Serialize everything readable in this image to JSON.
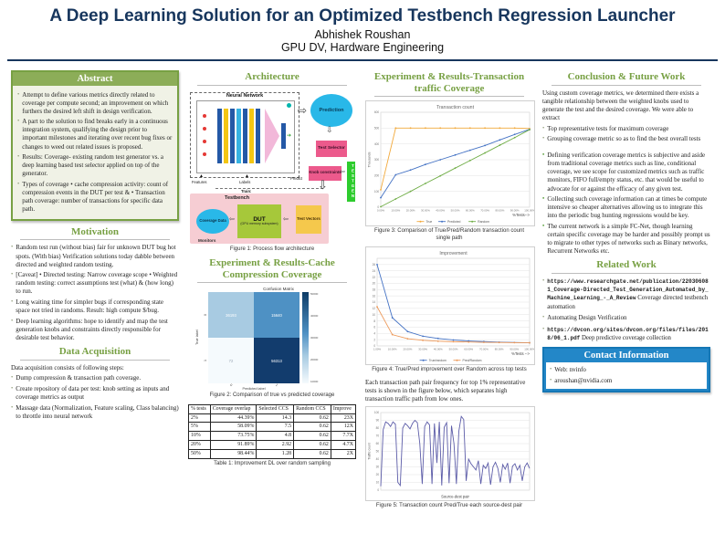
{
  "theme": {
    "navy": "#17365d",
    "accent-green": "#77a043",
    "header-green-bg": "#8cad58",
    "abstract-bg": "#f0f2e6",
    "contact-blue": "#2387c8",
    "contact-border": "#1577b5"
  },
  "header": {
    "title": "A Deep Learning Solution for an Optimized Testbench Regression Launcher",
    "author": "Abhishek Roushan",
    "affiliation": "GPU DV, Hardware Engineering"
  },
  "abstract": {
    "title": "Abstract",
    "items": [
      "Attempt to define various metrics directly related to coverage per compute second; an improvement on which furthers the desired left shift in design verification.",
      "A part to the solution to find breaks early in a continuous integration system, qualifying the design prior to important milestones and iterating over recent bug fixes or changes to weed out related issues is proposed.",
      "Results: Coverage- existing random test generator vs. a deep learning based test selector applied on top of the generator.",
      "Types of coverage • cache compression activity: count of compression events in the DUT per test & • Transaction path coverage: number of transactions for specific data path."
    ]
  },
  "motivation": {
    "title": "Motivation",
    "items": [
      "Random test run (without bias) fair for unknown DUT bug hot spots. (With bias) Verification solutions today dabble between directed and weighted random testing.",
      "[Caveat] • Directed testing: Narrow coverage scope • Weighted random testing: correct assumptions test (what) & (how long) to run.",
      "Long waiting time for simpler bugs if corresponding state space not tried in randoms. Result: high compute $/bug.",
      "Deep learning algorithms: hope to identify and map the test generation knobs and constraints directly responsible for desirable test behavior."
    ]
  },
  "data_acquisition": {
    "title": "Data Acquisition",
    "intro": "Data acquisition consists of following steps:",
    "items": [
      "Dump compression & transaction path coverage.",
      "Create repository of data per test: knob setting as inputs and coverage metrics as output",
      "Massage data (Normalization, Feature scaling, Class balancing) to throttle into neural network"
    ]
  },
  "architecture": {
    "title": "Architecture",
    "caption": "Figure 1: Process flow architecture",
    "diagram": {
      "neural_network": "Neural Network",
      "prediction": "Prediction",
      "test_selector": "Test Selector",
      "knob_constraints": "Knob constraints",
      "testgen": "TESTGEN",
      "testbench": "Testbench",
      "coverage_data": "Coverage Data",
      "monitors": "Monitors",
      "dut": "DUT",
      "dut_sub": "(GPU memory subsystem)",
      "test_vectors": "Test Vectors",
      "features": "Features",
      "labels": "Labels",
      "predict": "Predict",
      "train": "Train:"
    }
  },
  "cache_section": {
    "title": "Experiment & Results-Cache Compression Coverage",
    "caption": "Figure 2: Comparison of true vs predicted coverage",
    "figure2": {
      "title": "Confusion Matrix",
      "ylabel": "True label",
      "xlabel": "Predicted label",
      "cells": [
        [
          "36193",
          "15640"
        ],
        [
          "72",
          "56313"
        ]
      ],
      "cell_colors": [
        [
          "#a8cbe2",
          "#4e91c4"
        ],
        [
          "#f5fafd",
          "#123c6d"
        ]
      ],
      "cell_text_colors": [
        [
          "#ffffff",
          "#ffffff"
        ],
        [
          "#9aa7b5",
          "#ffffff"
        ]
      ],
      "xticks": [
        "0",
        "1"
      ],
      "yticks": [
        "0",
        "1"
      ],
      "colorbar_ticks": [
        "50000",
        "40000",
        "30000",
        "20000",
        "10000"
      ]
    }
  },
  "table1": {
    "caption": "Table 1: Improvement DL over random sampling",
    "headers": [
      "% tests",
      "Coverage overlap",
      "Selected CCS",
      "Random CCS",
      "Improve"
    ],
    "rows": [
      [
        "2%",
        "44.39%",
        "14.3",
        "0.62",
        "23X"
      ],
      [
        "5%",
        "58.09%",
        "7.5",
        "0.62",
        "12X"
      ],
      [
        "10%",
        "73.75%",
        "4.8",
        "0.62",
        "7.7X"
      ],
      [
        "20%",
        "91.89%",
        "2.92",
        "0.62",
        "4.7X"
      ],
      [
        "50%",
        "98.44%",
        "1.28",
        "0.62",
        "2X"
      ]
    ]
  },
  "transaction_section": {
    "title": "Experiment & Results-Transaction traffic Coverage",
    "fig3_caption": "Figure 3: Comparison of True/Pred/Random transaction count single path",
    "fig4_caption": "Figure 4: True/Pred improvement over Random across top tests",
    "paragraph": "Each transaction path pair frequency for top 1% representative tests is shown in the figure below, which separates high transaction traffic path from low ones.",
    "fig5_caption": "Figure 5: Transaction count Pred/True each source-dest pair"
  },
  "conclusion": {
    "title": "Conclusion & Future Work",
    "intro": "Using custom coverage metrics, we determined there exists a tangible relationship between the weighted knobs used to generate the test and the desired coverage. We were able to extract",
    "bullets": [
      "Top representative tests for maximum coverage",
      "Grouping coverage metric so as to find the best overall tests"
    ],
    "future": [
      "Defining verification coverage metrics is subjective and aside from traditional coverage metrics such as line, conditional coverage, we see scope for customized metrics such as traffic monitors, FIFO full/empty status, etc. that would be useful to advocate for or against the efficacy of any given test.",
      "Collecting such coverage information can at times be compute intensive so cheaper alternatives allowing us to integrate this into the periodic bug hunting regressions would be key.",
      "The current network is a simple FC-Net, though learning certain specific coverage may be harder and possibly prompt us to migrate to other types of networks such as Binary networks, Recurrent Networks etc."
    ]
  },
  "related": {
    "title": "Related Work",
    "items": [
      {
        "url": "https://www.researchgate.net/publication/220306081_Coverage-Directed_Test_Generation_Automated_by_Machine_Learning_-_A_Review",
        "desc": " Coverage directed testbench automation"
      },
      {
        "url": "",
        "desc": "Automating Design Verification"
      },
      {
        "url": "https://dvcon.org/sites/dvcon.org/files/files/2018/06_1.pdf",
        "desc": " Deep predictive coverage collection"
      }
    ]
  },
  "contact": {
    "title": "Contact Information",
    "items": [
      "Web: nvinfo",
      "aroushan@nvidia.com"
    ]
  },
  "chart_data": [
    {
      "id": "fig3",
      "type": "line",
      "title": "Transaction count",
      "ylabel": "Thousands",
      "xlabel": "%Tests-->",
      "xlabel_align": "end",
      "categories": [
        "0.00%",
        "10.00%",
        "20.00%",
        "30.00%",
        "40.00%",
        "50.00%",
        "60.00%",
        "70.00%",
        "80.00%",
        "90.00%",
        "100.00%"
      ],
      "ylim": [
        0,
        600
      ],
      "yticks": [
        0,
        100,
        200,
        300,
        400,
        500,
        600
      ],
      "markers": true,
      "legend": true,
      "series": [
        {
          "name": "True",
          "color": "#f2a93b",
          "values": [
            110,
            500,
            500,
            500,
            500,
            500,
            500,
            500,
            500,
            500,
            497
          ]
        },
        {
          "name": "Predicted",
          "color": "#4472c4",
          "values": [
            60,
            205,
            235,
            270,
            300,
            330,
            360,
            390,
            425,
            460,
            492
          ]
        },
        {
          "name": "Random",
          "color": "#70ad47",
          "values": [
            3,
            52,
            100,
            150,
            198,
            247,
            295,
            343,
            392,
            440,
            490
          ]
        }
      ]
    },
    {
      "id": "fig4",
      "type": "line",
      "title": "Improvement",
      "ylabel": "",
      "xlabel": "%Tests -->",
      "xlabel_align": "end",
      "categories": [
        "1.00%",
        "10.00%",
        "20.00%",
        "30.00%",
        "40.00%",
        "50.00%",
        "60.00%",
        "70.00%",
        "80.00%",
        "90.00%",
        "100.00%"
      ],
      "ylim": [
        0,
        28
      ],
      "yticks": [
        0,
        2,
        4,
        6,
        8,
        10,
        12,
        14,
        16,
        18,
        20,
        22,
        24,
        26
      ],
      "markers": true,
      "legend": true,
      "series": [
        {
          "name": "True/random",
          "color": "#4472c4",
          "values": [
            26,
            9,
            4.6,
            3.1,
            2.4,
            1.9,
            1.6,
            1.4,
            1.2,
            1.1,
            1.0
          ]
        },
        {
          "name": "Pred/Random",
          "color": "#ed9a5b",
          "values": [
            12.5,
            3.6,
            2.3,
            1.8,
            1.5,
            1.35,
            1.25,
            1.15,
            1.1,
            1.05,
            1.0
          ]
        }
      ]
    },
    {
      "id": "fig5",
      "type": "line",
      "title": "",
      "ylabel": "Traffic count",
      "xlabel": "Source-dest pair",
      "xlabel_align": "middle",
      "show_xticks": false,
      "categories": null,
      "ylim": [
        0,
        100
      ],
      "yticks": [
        0,
        10,
        20,
        30,
        40,
        50,
        60,
        70,
        80,
        90,
        100
      ],
      "markers": false,
      "legend": false,
      "series": [
        {
          "name": "Pred/True",
          "color": "#5c5ca8",
          "values": [
            5,
            78,
            88,
            86,
            82,
            88,
            85,
            10,
            6,
            80,
            86,
            83,
            79,
            86,
            90,
            87,
            60,
            8,
            82,
            88,
            84,
            8,
            86,
            35,
            88,
            6,
            81,
            87,
            9,
            83,
            60,
            8,
            76,
            95,
            91,
            12,
            40,
            34,
            30,
            26,
            38,
            8,
            32,
            28,
            35,
            7,
            30,
            36,
            28,
            10,
            33,
            27,
            35,
            9,
            31,
            34,
            26,
            32,
            12,
            30,
            35,
            28
          ]
        }
      ]
    }
  ]
}
